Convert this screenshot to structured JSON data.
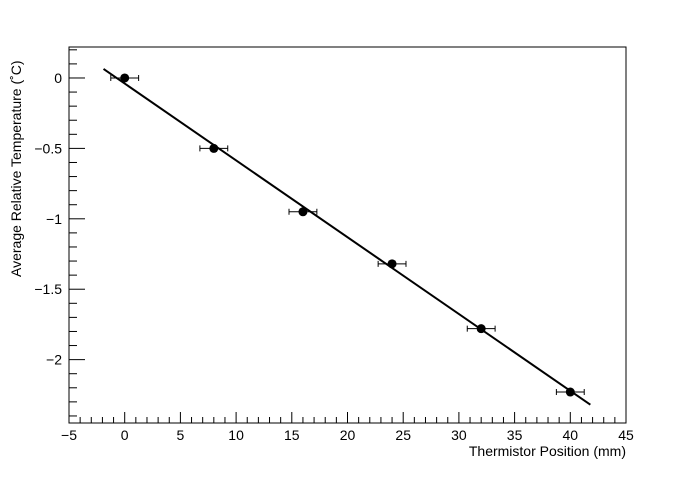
{
  "chart_data": {
    "type": "scatter",
    "title": "",
    "xlabel": "Thermistor Position (mm)",
    "ylabel": "Average Relative Temperature (˚C)",
    "xlim": [
      -5,
      45
    ],
    "ylim": [
      -2.45,
      0.22
    ],
    "grid": false,
    "legend": "none",
    "x_ticks": [
      -5,
      0,
      5,
      10,
      15,
      20,
      25,
      30,
      35,
      40,
      45
    ],
    "x_tick_labels": [
      "−5",
      "0",
      "5",
      "10",
      "15",
      "20",
      "25",
      "30",
      "35",
      "40",
      "45"
    ],
    "y_ticks": [
      0,
      -0.5,
      -1,
      -1.5,
      -2
    ],
    "y_tick_labels": [
      "0",
      "−0.5",
      "−1",
      "−1.5",
      "−2"
    ],
    "series": [
      {
        "x": [
          0,
          8,
          16,
          24,
          32,
          40
        ],
        "y": [
          0,
          -0.5,
          -0.95,
          -1.32,
          -1.78,
          -2.23
        ],
        "x_err": [
          1.25,
          1.25,
          1.25,
          1.25,
          1.25,
          1.25
        ],
        "color": "#000000"
      }
    ],
    "fit_line": {
      "x": [
        -1.9,
        41.8
      ],
      "y": [
        0.064,
        -2.32
      ],
      "color": "#000000"
    }
  }
}
